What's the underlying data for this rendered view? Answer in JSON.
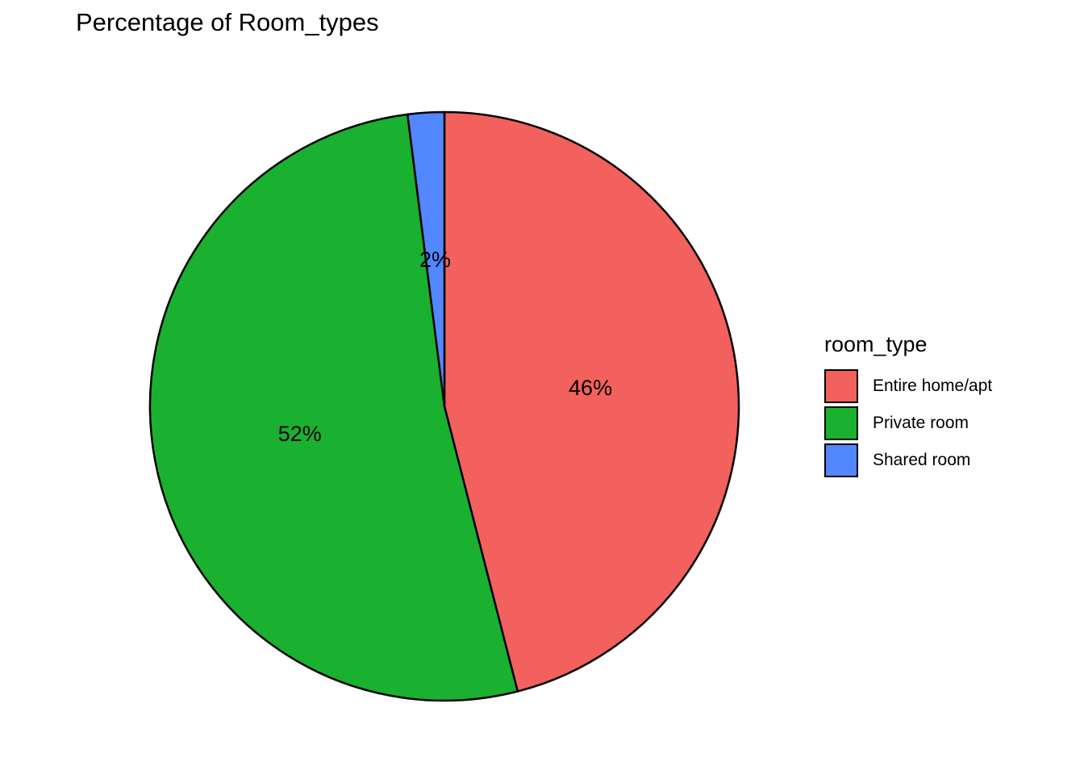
{
  "chart_data": {
    "type": "pie",
    "title": "Percentage of Room_types",
    "legend_title": "room_type",
    "legend_position": "right",
    "categories": [
      "Entire home/apt",
      "Private room",
      "Shared room"
    ],
    "values": [
      46,
      52,
      2
    ],
    "labels": [
      "46%",
      "52%",
      "2%"
    ],
    "colors": [
      "#F2615D",
      "#19B12F",
      "#5287FF"
    ],
    "stroke": "#000000",
    "direction": "clockwise",
    "start": "top"
  }
}
